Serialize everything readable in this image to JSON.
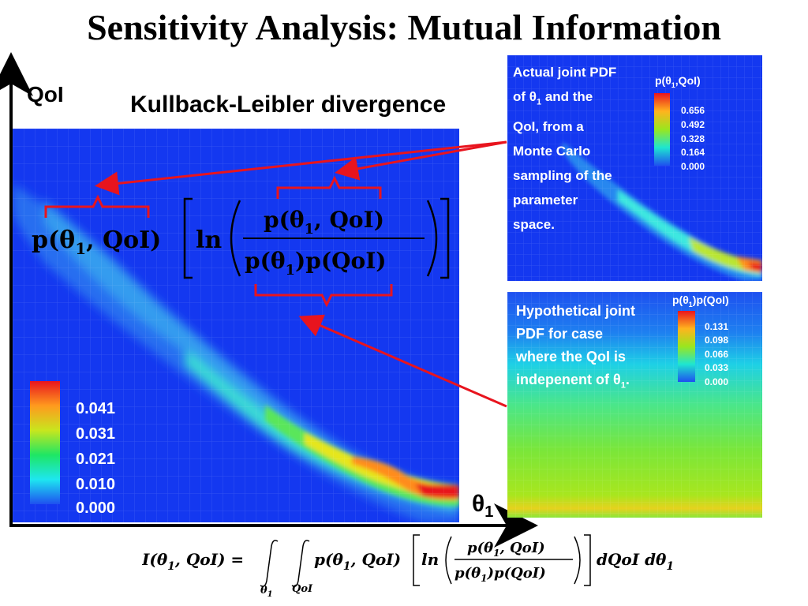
{
  "title": "Sensitivity Analysis: Mutual Information",
  "axis": {
    "y_label": "QoI",
    "x_label": "θ",
    "x_label_sub": "1"
  },
  "main_plot": {
    "label": "Kullback-Leibler divergence",
    "colorbar_ticks": [
      "0.041",
      "0.031",
      "0.021",
      "0.010",
      "0.000"
    ],
    "formula": {
      "lhs": "p(θ",
      "lhs_sub": "1",
      "lhs_end": ", QoI)",
      "ln": "ln",
      "numerator": "p(θ",
      "numerator_sub": "1",
      "numerator_end": ", QoI)",
      "denominator": "p(θ",
      "denominator_sub": "1",
      "denominator_end": ")p(QoI)"
    }
  },
  "joint_panel": {
    "text_lines": [
      "Actual joint PDF",
      "of θ",
      "QoI, from a",
      "Monte Carlo",
      "sampling of the",
      "parameter",
      "space."
    ],
    "line2_sub": "1",
    "line2_end": " and the",
    "legend_title": "p(θ",
    "legend_title_sub": "1",
    "legend_title_end": ",QoI)",
    "colorbar_ticks": [
      "0.656",
      "0.492",
      "0.328",
      "0.164",
      "0.000"
    ]
  },
  "independent_panel": {
    "text_lines": [
      "Hypothetical joint",
      "PDF for case",
      "where the QoI is",
      "indepenent of θ"
    ],
    "line4_sub": "1",
    "line4_end": ".",
    "legend_title": "p(θ",
    "legend_title_sub": "1",
    "legend_title_end": ")p(QoI)",
    "colorbar_ticks": [
      "0.131",
      "0.098",
      "0.066",
      "0.033",
      "0.000"
    ]
  },
  "bottom_formula": {
    "lhs": "I(θ",
    "lhs_sub": "1",
    "lhs_end": ", QoI) =",
    "int1_sub": "θ",
    "int1_sub_sub": "1",
    "int2_sub": "QoI",
    "integrand": "p(θ",
    "integrand_sub": "1",
    "integrand_end": ", QoI)",
    "ln": "ln",
    "numerator": "p(θ",
    "numerator_sub": "1",
    "numerator_end": ", QoI)",
    "denominator": "p(θ",
    "denominator_sub": "1",
    "denominator_end": ")p(QoI)",
    "differentials": "dQoI dθ",
    "differentials_sub": "1"
  },
  "colors": {
    "background_blue": "#1438f0",
    "arrow_red": "#e8141e",
    "text_white": "#ffffff"
  }
}
